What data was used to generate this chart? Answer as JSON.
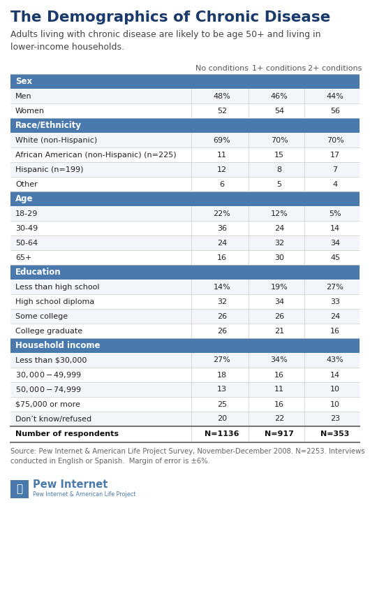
{
  "title": "The Demographics of Chronic Disease",
  "subtitle": "Adults living with chronic disease are likely to be age 50+ and living in\nlower-income households.",
  "col_headers": [
    "No conditions",
    "1+ conditions",
    "2+ conditions"
  ],
  "section_color": "#4a7aad",
  "section_text_color": "#ffffff",
  "sections": [
    {
      "header": "Sex",
      "rows": [
        {
          "label": "Men",
          "values": [
            "48%",
            "46%",
            "44%"
          ]
        },
        {
          "label": "Women",
          "values": [
            "52",
            "54",
            "56"
          ]
        }
      ]
    },
    {
      "header": "Race/Ethnicity",
      "rows": [
        {
          "label": "White (non-Hispanic)",
          "values": [
            "69%",
            "70%",
            "70%"
          ]
        },
        {
          "label": "African American (non-Hispanic) (n=225)",
          "values": [
            "11",
            "15",
            "17"
          ]
        },
        {
          "label": "Hispanic (n=199)",
          "values": [
            "12",
            "8",
            "7"
          ]
        },
        {
          "label": "Other",
          "values": [
            "6",
            "5",
            "4"
          ]
        }
      ]
    },
    {
      "header": "Age",
      "rows": [
        {
          "label": "18-29",
          "values": [
            "22%",
            "12%",
            "5%"
          ]
        },
        {
          "label": "30-49",
          "values": [
            "36",
            "24",
            "14"
          ]
        },
        {
          "label": "50-64",
          "values": [
            "24",
            "32",
            "34"
          ]
        },
        {
          "label": "65+",
          "values": [
            "16",
            "30",
            "45"
          ]
        }
      ]
    },
    {
      "header": "Education",
      "rows": [
        {
          "label": "Less than high school",
          "values": [
            "14%",
            "19%",
            "27%"
          ]
        },
        {
          "label": "High school diploma",
          "values": [
            "32",
            "34",
            "33"
          ]
        },
        {
          "label": "Some college",
          "values": [
            "26",
            "26",
            "24"
          ]
        },
        {
          "label": "College graduate",
          "values": [
            "26",
            "21",
            "16"
          ]
        }
      ]
    },
    {
      "header": "Household income",
      "rows": [
        {
          "label": "Less than $30,000",
          "values": [
            "27%",
            "34%",
            "43%"
          ]
        },
        {
          "label": "$30,000-$49,999",
          "values": [
            "18",
            "16",
            "14"
          ]
        },
        {
          "label": "$50,000-$74,999",
          "values": [
            "13",
            "11",
            "10"
          ]
        },
        {
          "label": "$75,000 or more",
          "values": [
            "25",
            "16",
            "10"
          ]
        },
        {
          "label": "Don’t know/refused",
          "values": [
            "20",
            "22",
            "23"
          ]
        }
      ]
    }
  ],
  "footer_row_label": "Number of respondents",
  "footer_row_values": [
    "N=1136",
    "N=917",
    "N=353"
  ],
  "source_text": "Source: Pew Internet & American Life Project Survey, November-December 2008. N=2253. Interviews\nconducted in English or Spanish.  Margin of error is ±6%.",
  "background_color": "#ffffff",
  "divider_color": "#cccccc",
  "title_color": "#1a3a6b",
  "subtitle_color": "#444444",
  "data_color": "#222222",
  "footer_label_color": "#111111",
  "source_color": "#666666",
  "pew_blue": "#4a7aad"
}
